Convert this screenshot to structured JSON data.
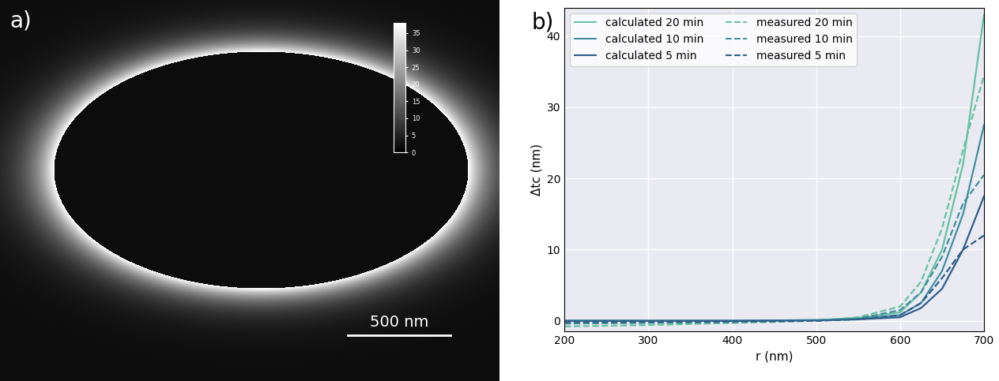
{
  "chart_data": [
    {
      "type": "image",
      "panel_label": "a)",
      "scale_bar": {
        "label": "500 nm"
      },
      "colorbar_range": [
        0,
        38
      ],
      "colorbar_ticks": [
        0,
        5,
        10,
        15,
        20,
        25,
        30,
        35
      ]
    },
    {
      "type": "line",
      "panel_label": "b)",
      "x_label": "r (nm)",
      "y_label": "Δtc (nm)",
      "xlim": [
        200,
        700
      ],
      "ylim": [
        -1.5,
        44
      ],
      "xticks": [
        200,
        300,
        400,
        500,
        600,
        700
      ],
      "yticks": [
        0,
        10,
        20,
        30,
        40
      ],
      "grid": true,
      "legend": "upper left",
      "x": [
        200,
        300,
        400,
        500,
        550,
        600,
        625,
        650,
        675,
        700
      ],
      "series": [
        {
          "name": "calculated 20 min",
          "color": "#66c2a0",
          "line_style": "solid",
          "values": [
            0,
            0,
            0,
            0.1,
            0.4,
            1.2,
            4,
            10,
            22,
            43
          ]
        },
        {
          "name": "calculated 10 min",
          "color": "#3f8f9f",
          "line_style": "solid",
          "values": [
            0,
            0,
            0,
            0.1,
            0.3,
            0.8,
            2.5,
            7,
            15,
            27.5
          ]
        },
        {
          "name": "calculated 5 min",
          "color": "#2e5f8a",
          "line_style": "solid",
          "values": [
            0,
            0,
            0,
            0.05,
            0.2,
            0.5,
            1.8,
            4.5,
            10,
            17.5
          ]
        },
        {
          "name": "measured 20 min",
          "color": "#66c2a0",
          "line_style": "dashed",
          "values": [
            -0.8,
            -0.6,
            -0.3,
            0,
            0.5,
            2,
            5.5,
            13,
            24,
            34.5
          ]
        },
        {
          "name": "measured 10 min",
          "color": "#3f8f9f",
          "line_style": "dashed",
          "values": [
            -0.4,
            -0.3,
            -0.2,
            0,
            0.3,
            1.5,
            4,
            9,
            16.5,
            20.5
          ]
        },
        {
          "name": "measured 5 min",
          "color": "#2e5f8a",
          "line_style": "dashed",
          "values": [
            -0.2,
            -0.15,
            -0.1,
            0,
            0.2,
            0.8,
            2.5,
            6,
            10,
            12
          ]
        }
      ]
    }
  ]
}
